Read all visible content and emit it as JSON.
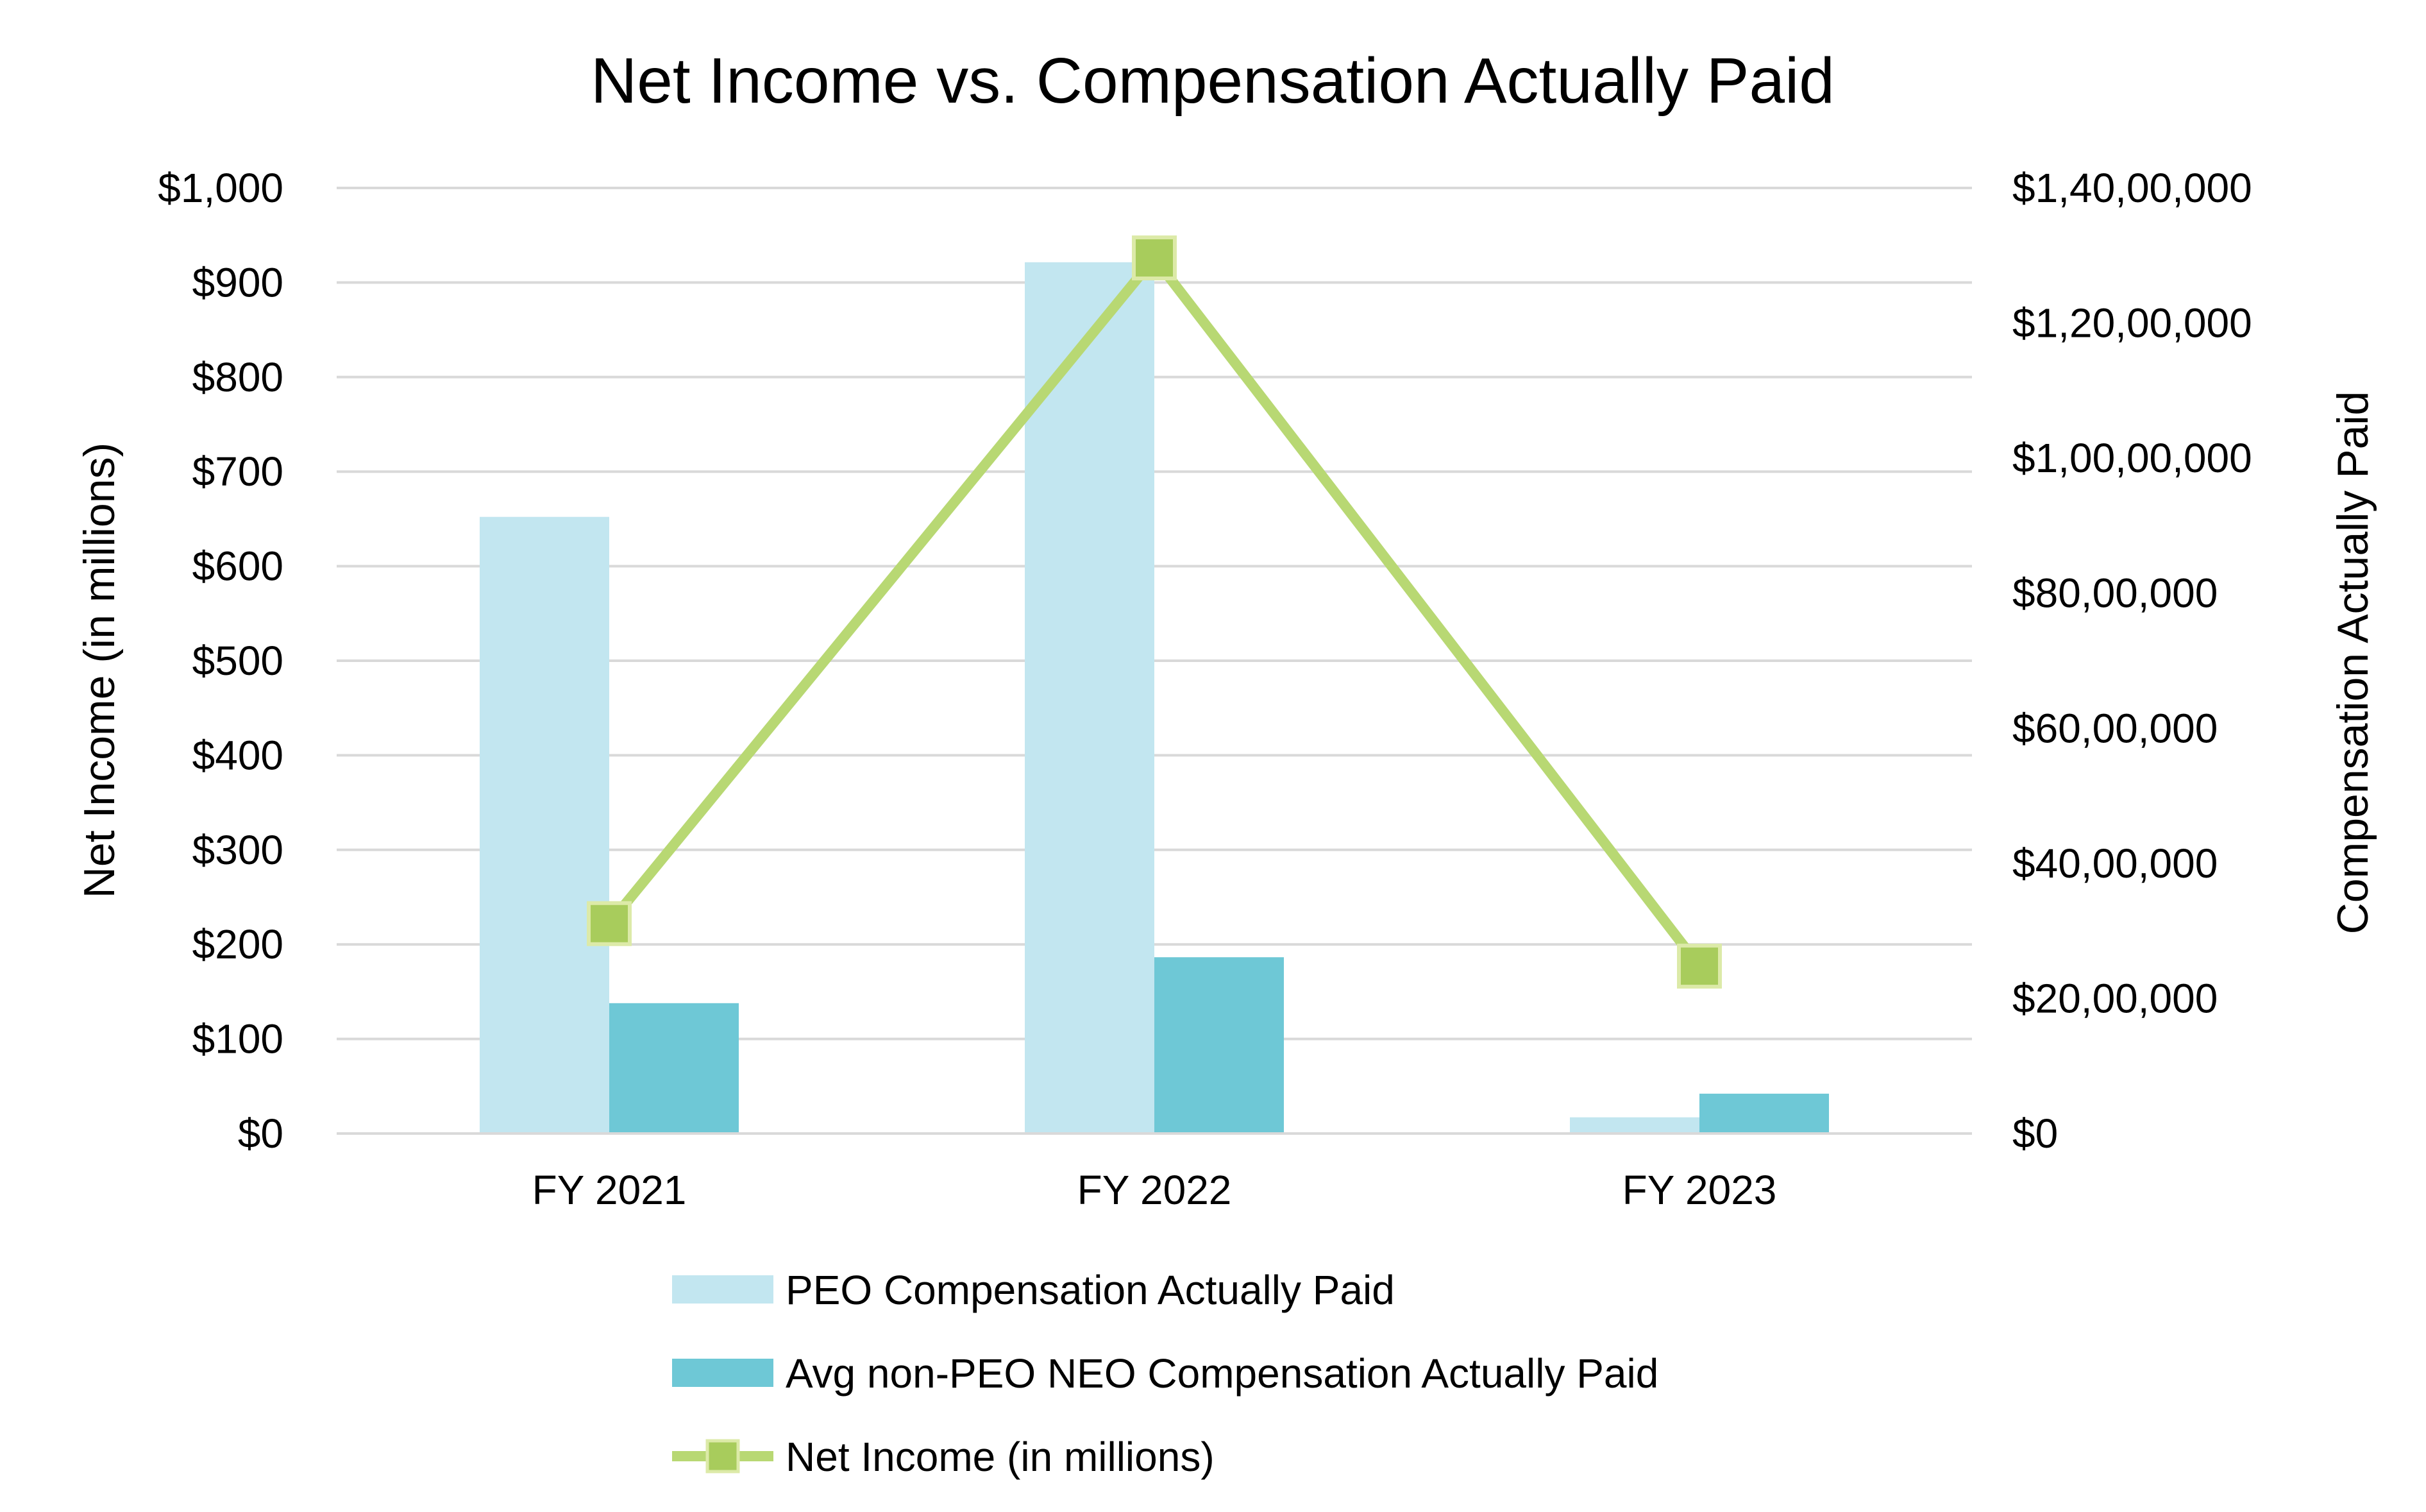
{
  "chart_data": {
    "type": "bar",
    "title": "Net Income vs. Compensation Actually Paid",
    "categories": [
      "FY 2021",
      "FY 2022",
      "FY 2023"
    ],
    "y_left": {
      "label": "Net Income (in millions)",
      "ticks": [
        "$0",
        "$100",
        "$200",
        "$300",
        "$400",
        "$500",
        "$600",
        "$700",
        "$800",
        "$900",
        "$1,000"
      ],
      "range": [
        0,
        1000
      ]
    },
    "y_right": {
      "label": "Compensation Actually Paid",
      "ticks": [
        "$0",
        "$20,00,000",
        "$40,00,000",
        "$60,00,000",
        "$80,00,000",
        "$1,00,00,000",
        "$1,20,00,000",
        "$1,40,00,000"
      ],
      "range": [
        0,
        14000000
      ]
    },
    "series": [
      {
        "name": "PEO Compensation Actually Paid",
        "type": "bar",
        "axis": "right",
        "color": "#c2e6f0",
        "values": [
          9130000,
          12900000,
          240000
        ]
      },
      {
        "name": "Avg non-PEO NEO Compensation Actually Paid",
        "type": "bar",
        "axis": "right",
        "color": "#6ec8d6",
        "values": [
          1930000,
          2610000,
          590000
        ]
      },
      {
        "name": "Net Income (in millions)",
        "type": "line",
        "axis": "left",
        "color": "#b8d873",
        "marker_color": "#a8cc5c",
        "values": [
          222,
          926,
          177
        ]
      }
    ],
    "grid": true,
    "legend": "bottom"
  }
}
